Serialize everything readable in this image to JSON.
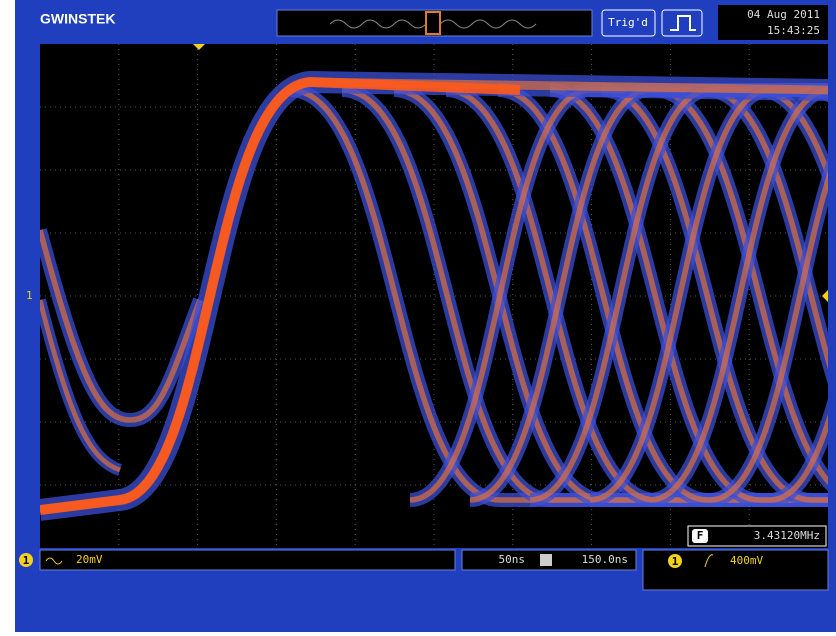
{
  "header": {
    "logo": "GWINSTEK",
    "trigger_status": "Trig'd",
    "date": "04 Aug 2011",
    "time": "15:43:25"
  },
  "display": {
    "channel_marker": "1"
  },
  "status": {
    "channel": "1",
    "scale": "20mV",
    "timebase": "50ns",
    "horizontal_position": "150.0ns",
    "frequency_label": "F",
    "frequency": "3.43120MHz",
    "trigger_channel": "1",
    "trigger_level": "400mV"
  }
}
